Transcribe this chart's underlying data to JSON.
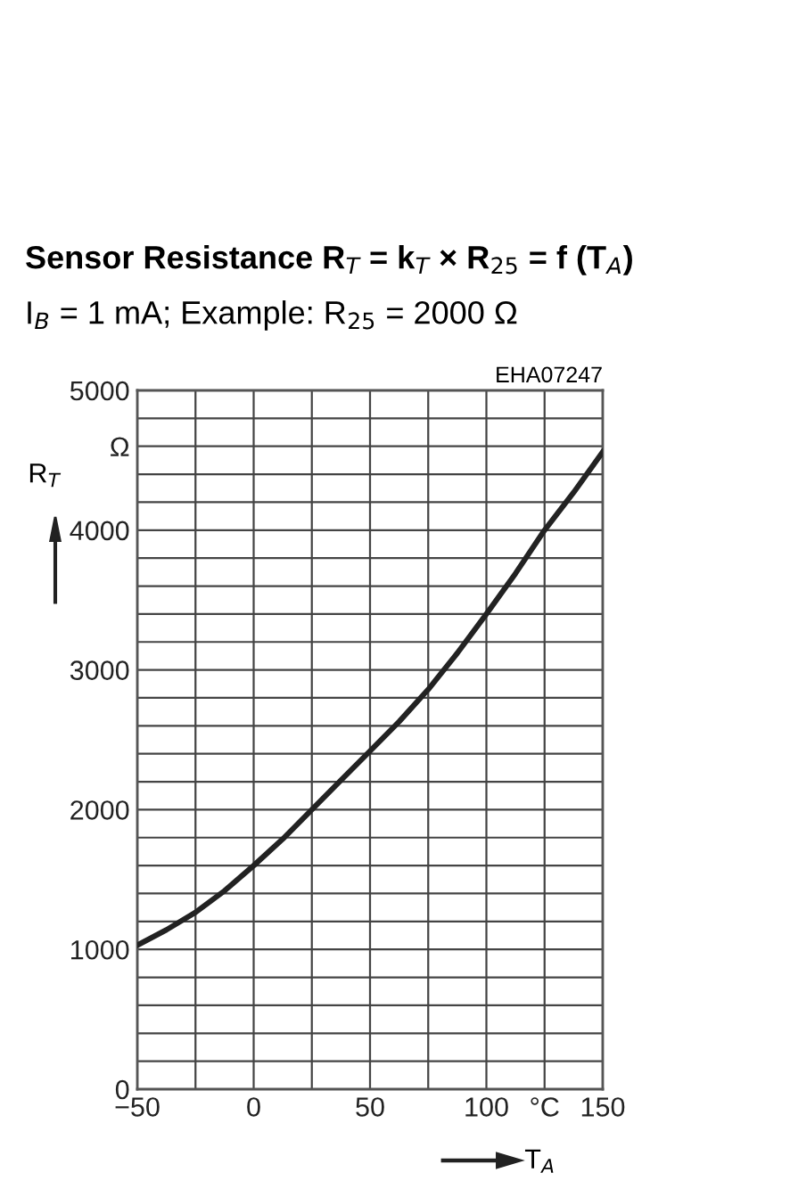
{
  "chart_data": {
    "type": "line",
    "title": "Sensor Resistance R$_{T}$ = k$_{T}$ × R$_{25}$ = f (T$_{A}$)",
    "subtitle": "I$_{B}$ = 1 mA; Example: R$_{25}$ = 2000 Ω",
    "xlabel": "T$_{A}$",
    "ylabel": "R$_{T}$",
    "annotations": [
      "EHA07247"
    ],
    "x": [
      -50,
      -37.5,
      -25,
      -12.5,
      0,
      12.5,
      25,
      37.5,
      50,
      62.5,
      75,
      87.5,
      100,
      112.5,
      125,
      137.5,
      150
    ],
    "series": [
      {
        "color": "#222222",
        "values": [
          1030,
          1140,
          1265,
          1420,
          1600,
          1790,
          2000,
          2210,
          2420,
          2630,
          2860,
          3120,
          3400,
          3690,
          4000,
          4270,
          4560
        ]
      }
    ],
    "xlim": [
      -50,
      150
    ],
    "xticks": [
      -50,
      {
        "value": -25,
        "label": null
      },
      0,
      {
        "value": 25,
        "label": null
      },
      50,
      {
        "value": 75,
        "label": null
      },
      100,
      {
        "value": 125,
        "label": "°C"
      },
      150
    ],
    "ylim": [
      0,
      5000
    ],
    "yticks": [
      0,
      {
        "value": 200,
        "label": null
      },
      {
        "value": 400,
        "label": null
      },
      {
        "value": 600,
        "label": null
      },
      {
        "value": 800,
        "label": null
      },
      1000,
      {
        "value": 1200,
        "label": null
      },
      {
        "value": 1400,
        "label": null
      },
      {
        "value": 1600,
        "label": null
      },
      {
        "value": 1800,
        "label": null
      },
      2000,
      {
        "value": 2200,
        "label": null
      },
      {
        "value": 2400,
        "label": null
      },
      {
        "value": 2600,
        "label": null
      },
      {
        "value": 2800,
        "label": null
      },
      3000,
      {
        "value": 3200,
        "label": null
      },
      {
        "value": 3400,
        "label": null
      },
      {
        "value": 3600,
        "label": null
      },
      {
        "value": 3800,
        "label": null
      },
      4000,
      {
        "value": 4200,
        "label": null
      },
      {
        "value": 4400,
        "label": null
      },
      {
        "value": 4600,
        "label": "Ω"
      },
      {
        "value": 4800,
        "label": null
      },
      5000
    ],
    "grid": true,
    "legend": false,
    "line_style": "solid"
  }
}
